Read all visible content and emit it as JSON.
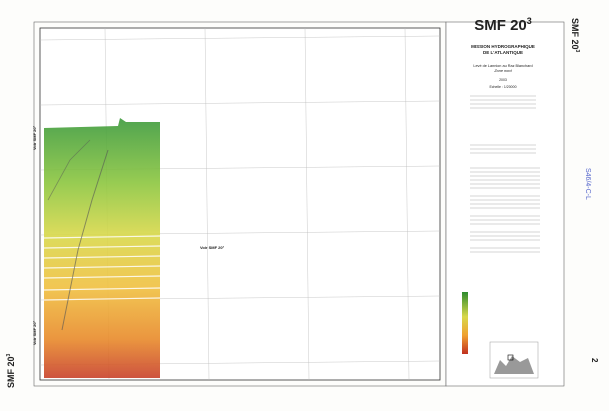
{
  "header": {
    "title": "SMF 20",
    "title_sup": "3",
    "side_title": "SMF 20",
    "side_sup": "3"
  },
  "panel": {
    "org_line1": "MISSION HYDROGRAPHIQUE",
    "org_line2": "DE L'ATLANTIQUE",
    "survey": "Levé de Lannion au Raz Blanchard",
    "zone": "Zone nord",
    "year": "2003",
    "scale": "Echelle : 1/20000"
  },
  "map": {
    "labels": [
      "Voir SMF 20²",
      "Voir SMF 20²",
      "Voir SMF 20²"
    ]
  },
  "footer": {
    "sheet": "SMF 20",
    "sheet_sup": "3"
  },
  "annotations": {
    "handwritten": "S46/4-C-L",
    "page_number": "2"
  }
}
